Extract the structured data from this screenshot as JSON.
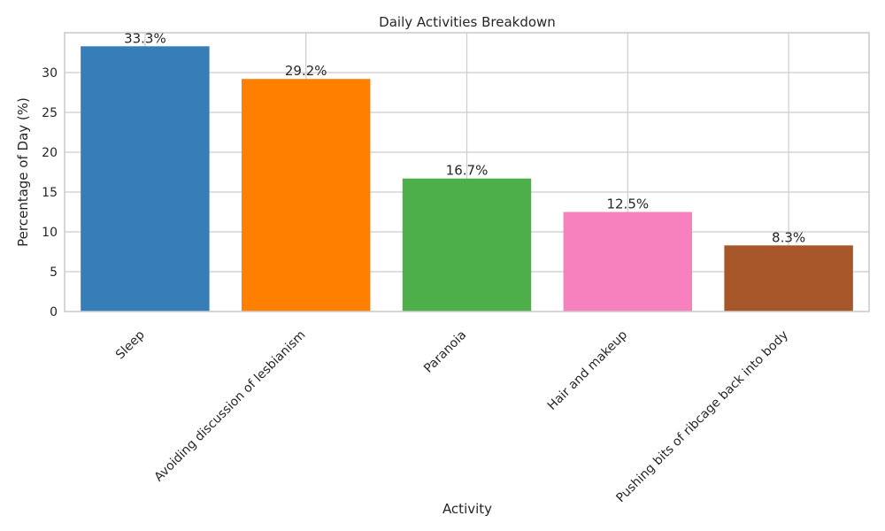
{
  "chart_data": {
    "type": "bar",
    "title": "Daily Activities Breakdown",
    "xlabel": "Activity",
    "ylabel": "Percentage of Day (%)",
    "categories": [
      "Sleep",
      "Avoiding discussion of lesbianism",
      "Paranoia",
      "Hair and makeup",
      "Pushing bits of ribcage back into body"
    ],
    "values": [
      33.3,
      29.2,
      16.7,
      12.5,
      8.3
    ],
    "data_labels": [
      "33.3%",
      "29.2%",
      "16.7%",
      "12.5%",
      "8.3%"
    ],
    "colors": [
      "#377eb8",
      "#ff7f00",
      "#4daf4a",
      "#f781bf",
      "#a65628"
    ],
    "ylim": [
      0,
      35
    ],
    "yticks": [
      0,
      5,
      10,
      15,
      20,
      25,
      30
    ],
    "grid": true,
    "legend": "none"
  }
}
